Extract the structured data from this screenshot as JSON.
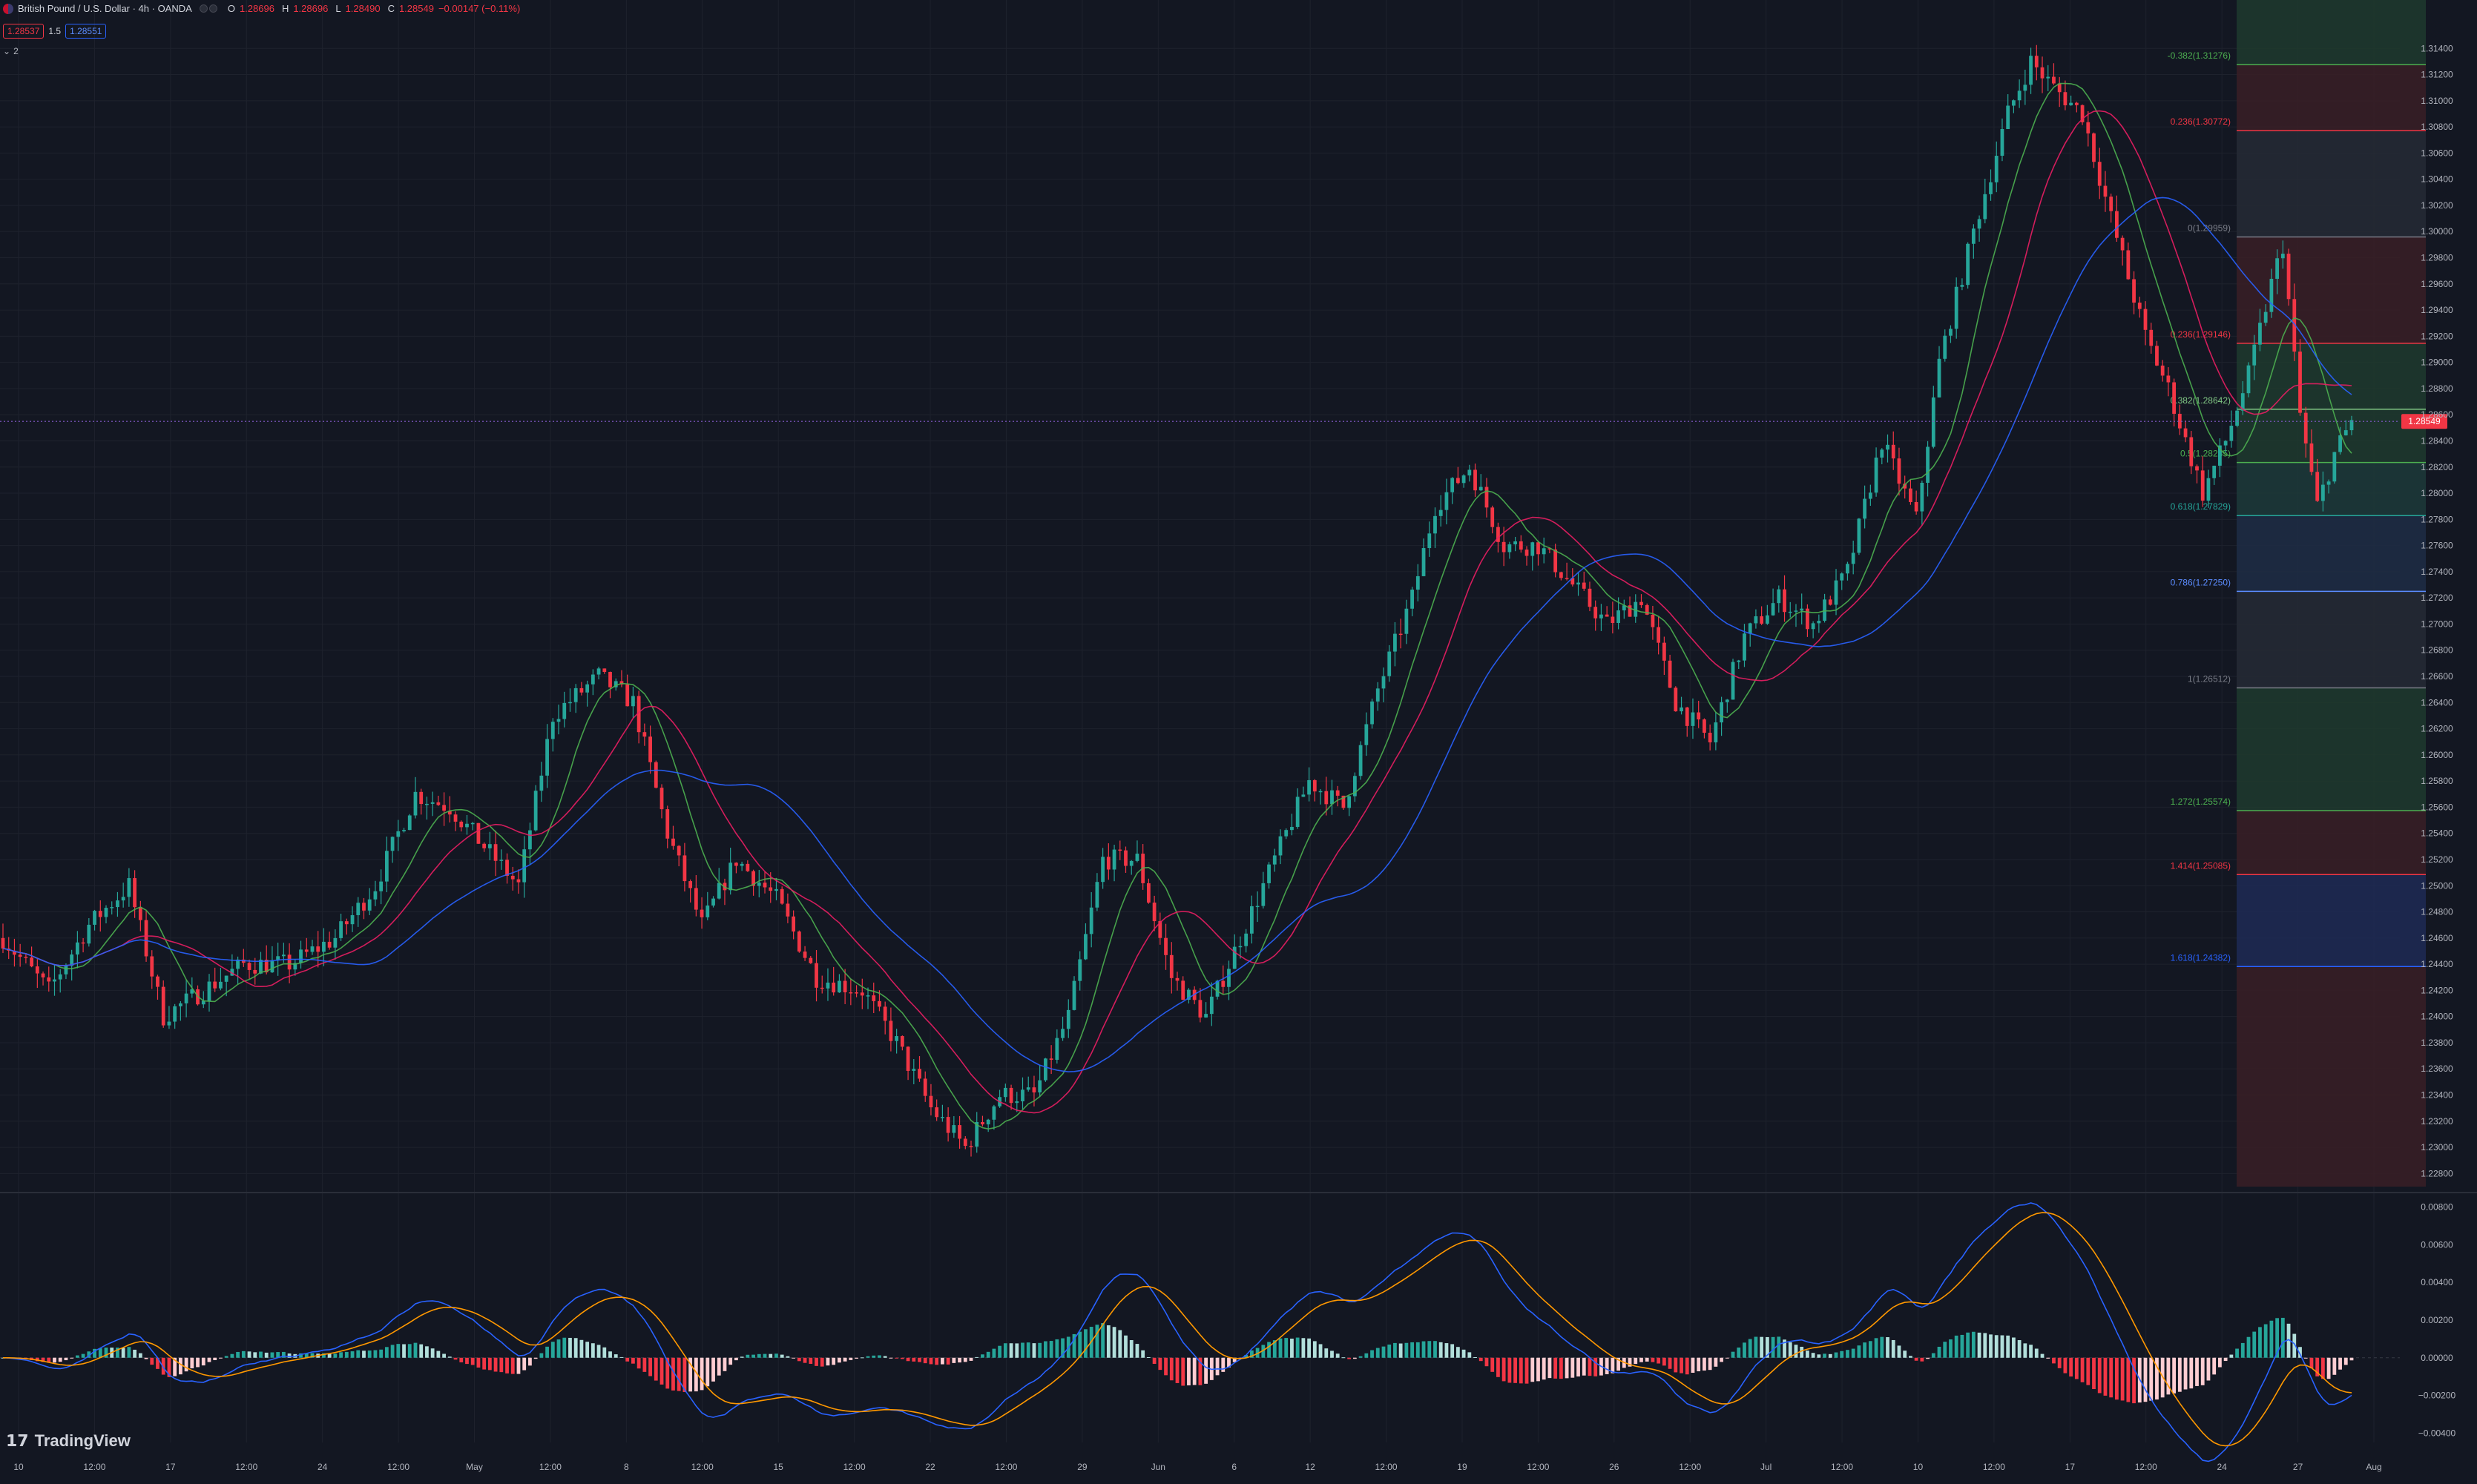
{
  "header": {
    "symbol_title": "British Pound / U.S. Dollar · 4h · OANDA",
    "o_label": "O",
    "o_value": "1.28696",
    "h_label": "H",
    "h_value": "1.28696",
    "l_label": "L",
    "l_value": "1.28490",
    "c_label": "C",
    "c_value": "1.28549",
    "change": "−0.00147 (−0.11%)",
    "sell_price": "1.28537",
    "spread": "1.5",
    "buy_price": "1.28551",
    "indicators_toggle": "2"
  },
  "brand": {
    "name": "TradingView"
  },
  "colors": {
    "background": "#131722",
    "grid": "#1e222d",
    "up": "#26a69a",
    "down": "#f23645",
    "ma_fast": "#4caf50",
    "ma_mid": "#e91e63",
    "ma_slow": "#2962ff",
    "macd": "#2962ff",
    "signal": "#ff9800",
    "price_line": "#7e57c2"
  },
  "chart_data": [
    {
      "type": "candlestick",
      "title": "",
      "price_axis_labels": [
        "1.31400",
        "1.31200",
        "1.31000",
        "1.30800",
        "1.30600",
        "1.30400",
        "1.30200",
        "1.30000",
        "1.29800",
        "1.29600",
        "1.29400",
        "1.29200",
        "1.29000",
        "1.28800",
        "1.28600",
        "1.28400",
        "1.28200",
        "1.28000",
        "1.27800",
        "1.27600",
        "1.27400",
        "1.27200",
        "1.27000",
        "1.26800",
        "1.26600",
        "1.26400",
        "1.26200",
        "1.26000",
        "1.25800",
        "1.25600",
        "1.25400",
        "1.25200",
        "1.25000",
        "1.24800",
        "1.24600",
        "1.24400",
        "1.24200",
        "1.24000",
        "1.23800",
        "1.23600",
        "1.23400",
        "1.23200",
        "1.23000",
        "1.22800"
      ],
      "ylim": [
        1.227,
        1.316
      ],
      "current_price": "1.28549",
      "time_axis_labels": [
        "10",
        "12:00",
        "17",
        "12:00",
        "24",
        "12:00",
        "May",
        "12:00",
        "8",
        "12:00",
        "15",
        "12:00",
        "22",
        "12:00",
        "29",
        "Jun",
        "6",
        "12",
        "12:00",
        "19",
        "12:00",
        "26",
        "12:00",
        "Jul",
        "12:00",
        "10",
        "12:00",
        "17",
        "12:00",
        "24",
        "27",
        "Aug"
      ],
      "price_path_keypoints": [
        [
          0,
          1.246
        ],
        [
          8,
          1.242
        ],
        [
          15,
          1.247
        ],
        [
          22,
          1.25
        ],
        [
          28,
          1.24
        ],
        [
          35,
          1.242
        ],
        [
          42,
          1.244
        ],
        [
          50,
          1.244
        ],
        [
          58,
          1.246
        ],
        [
          65,
          1.25
        ],
        [
          72,
          1.257
        ],
        [
          78,
          1.256
        ],
        [
          84,
          1.253
        ],
        [
          90,
          1.25
        ],
        [
          96,
          1.263
        ],
        [
          104,
          1.266
        ],
        [
          110,
          1.264
        ],
        [
          116,
          1.254
        ],
        [
          122,
          1.247
        ],
        [
          128,
          1.252
        ],
        [
          135,
          1.249
        ],
        [
          142,
          1.243
        ],
        [
          150,
          1.242
        ],
        [
          156,
          1.238
        ],
        [
          162,
          1.233
        ],
        [
          168,
          1.23
        ],
        [
          174,
          1.234
        ],
        [
          180,
          1.234
        ],
        [
          186,
          1.24
        ],
        [
          192,
          1.252
        ],
        [
          198,
          1.252
        ],
        [
          204,
          1.243
        ],
        [
          210,
          1.24
        ],
        [
          216,
          1.246
        ],
        [
          222,
          1.252
        ],
        [
          228,
          1.258
        ],
        [
          234,
          1.256
        ],
        [
          240,
          1.265
        ],
        [
          246,
          1.272
        ],
        [
          250,
          1.279
        ],
        [
          256,
          1.282
        ],
        [
          262,
          1.276
        ],
        [
          268,
          1.276
        ],
        [
          274,
          1.273
        ],
        [
          280,
          1.27
        ],
        [
          286,
          1.272
        ],
        [
          292,
          1.264
        ],
        [
          298,
          1.261
        ],
        [
          304,
          1.269
        ],
        [
          310,
          1.272
        ],
        [
          316,
          1.27
        ],
        [
          322,
          1.274
        ],
        [
          328,
          1.284
        ],
        [
          334,
          1.278
        ],
        [
          338,
          1.29
        ],
        [
          344,
          1.3
        ],
        [
          350,
          1.309
        ],
        [
          354,
          1.313
        ],
        [
          358,
          1.311
        ],
        [
          363,
          1.309
        ],
        [
          368,
          1.301
        ],
        [
          374,
          1.292
        ],
        [
          378,
          1.288
        ],
        [
          384,
          1.28
        ],
        [
          388,
          1.284
        ],
        [
          392,
          1.289
        ],
        [
          396,
          1.296
        ],
        [
          398,
          1.299
        ],
        [
          401,
          1.286
        ],
        [
          404,
          1.279
        ],
        [
          407,
          1.283
        ],
        [
          410,
          1.2855
        ]
      ],
      "moving_averages": [
        {
          "name": "",
          "color": "#4caf50",
          "period": 10
        },
        {
          "name": "",
          "color": "#e91e63",
          "period": 20
        },
        {
          "name": "",
          "color": "#2962ff",
          "period": 40
        }
      ],
      "fibonacci": [
        {
          "label": "-0.382(1.31276)",
          "price": 1.31276,
          "color": "#4caf50"
        },
        {
          "label": "0.236(1.30772)",
          "price": 1.30772,
          "color": "#f23645"
        },
        {
          "label": "0(1.29959)",
          "price": 1.29959,
          "color": "#787b86"
        },
        {
          "label": "0.236(1.29146)",
          "price": 1.29146,
          "color": "#f23645"
        },
        {
          "label": "0.382(1.28642)",
          "price": 1.28642,
          "color": "#81c784"
        },
        {
          "label": "0.5(1.28235)",
          "price": 1.28235,
          "color": "#4caf50"
        },
        {
          "label": "0.618(1.27829)",
          "price": 1.27829,
          "color": "#26a69a"
        },
        {
          "label": "0.786(1.27250)",
          "price": 1.2725,
          "color": "#5b8cff"
        },
        {
          "label": "1(1.26512)",
          "price": 1.26512,
          "color": "#787b86"
        },
        {
          "label": "1.272(1.25574)",
          "price": 1.25574,
          "color": "#4caf50"
        },
        {
          "label": "1.414(1.25085)",
          "price": 1.25085,
          "color": "#f23645"
        },
        {
          "label": "1.618(1.24382)",
          "price": 1.24382,
          "color": "#2962ff"
        }
      ]
    },
    {
      "type": "macd",
      "title": "",
      "axis_labels": [
        "0.00800",
        "0.00600",
        "0.00400",
        "0.00200",
        "0.00000",
        "−0.00200",
        "−0.00400"
      ],
      "ylim": [
        -0.0045,
        0.0085
      ]
    }
  ]
}
